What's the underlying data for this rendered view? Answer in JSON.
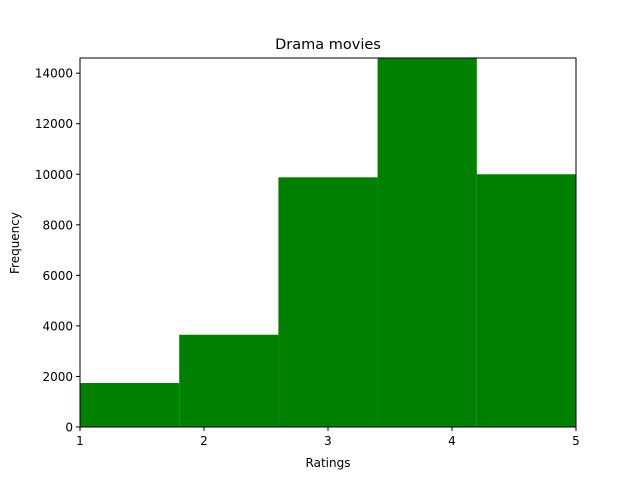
{
  "chart_data": {
    "type": "bar",
    "title": "Drama movies",
    "xlabel": "Ratings",
    "ylabel": "Frequency",
    "bins": [
      {
        "start": 1.0,
        "end": 1.8,
        "value": 1740
      },
      {
        "start": 1.8,
        "end": 2.6,
        "value": 3650
      },
      {
        "start": 2.6,
        "end": 3.4,
        "value": 9880
      },
      {
        "start": 3.4,
        "end": 4.2,
        "value": 14600
      },
      {
        "start": 4.2,
        "end": 5.0,
        "value": 10000
      }
    ],
    "xlim": [
      1,
      5
    ],
    "ylim": [
      0,
      14600
    ],
    "xticks": [
      "1",
      "2",
      "3",
      "4",
      "5"
    ],
    "yticks": [
      "0",
      "2000",
      "4000",
      "6000",
      "8000",
      "10000",
      "12000",
      "14000"
    ],
    "bar_color": "#008000",
    "grid": false,
    "legend": "none"
  }
}
